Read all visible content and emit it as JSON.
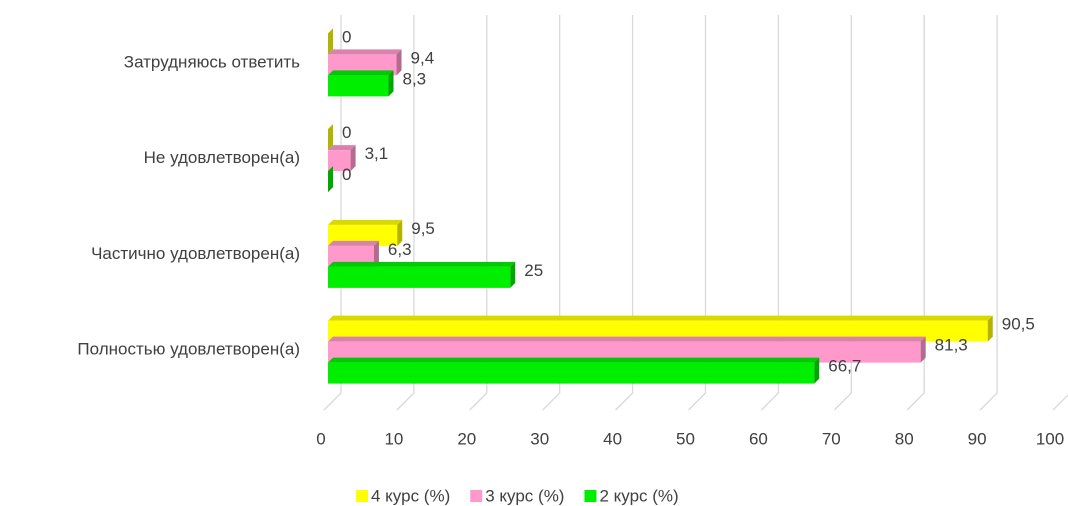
{
  "chart_data": {
    "type": "bar",
    "orientation": "horizontal",
    "categories": [
      "Затрудняюсь ответить",
      "Не удовлетворен(а)",
      "Частично удовлетворен(а)",
      "Полностью удовлетворен(а)"
    ],
    "series": [
      {
        "name": "4 курс (%)",
        "color": "#ffff00",
        "values": [
          0,
          0,
          9.5,
          90.5
        ],
        "value_labels": [
          "0",
          "0",
          "9,5",
          "90,5"
        ]
      },
      {
        "name": "3 курс (%)",
        "color": "#ff99cc",
        "values": [
          9.4,
          3.1,
          6.3,
          81.3
        ],
        "value_labels": [
          "9,4",
          "3,1",
          "6,3",
          "81,3"
        ]
      },
      {
        "name": "2 курс (%)",
        "color": "#00ee00",
        "values": [
          8.3,
          0,
          25,
          66.7
        ],
        "value_labels": [
          "8,3",
          "0",
          "25",
          "66,7"
        ]
      }
    ],
    "xlim": [
      0,
      100
    ],
    "xticks": [
      0,
      10,
      20,
      30,
      40,
      50,
      60,
      70,
      80,
      90,
      100
    ],
    "grid": true,
    "legend": "bottom"
  }
}
